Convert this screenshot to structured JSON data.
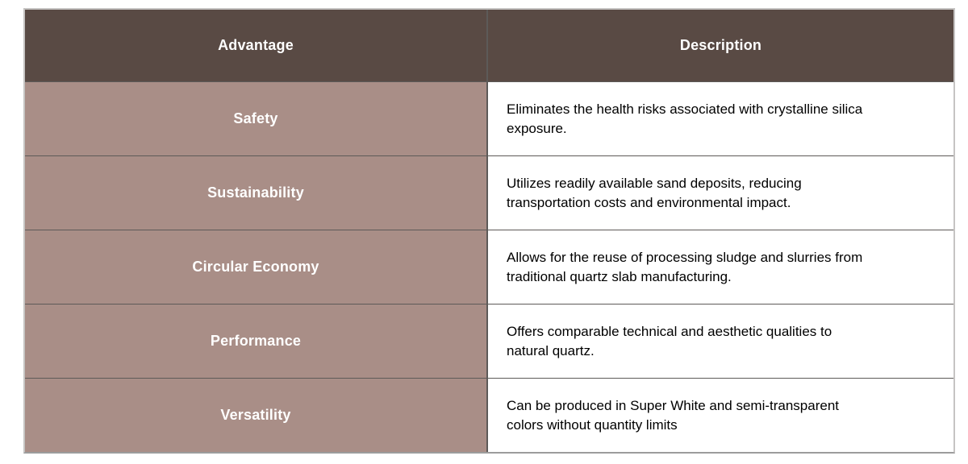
{
  "table": {
    "header": {
      "advantage_label": "Advantage",
      "description_label": "Description"
    },
    "rows": [
      {
        "advantage": "Safety",
        "description": "Eliminates the health risks associated with crystalline silica exposure."
      },
      {
        "advantage": "Sustainability",
        "description": "Utilizes readily available sand deposits, reducing transportation costs and environmental impact."
      },
      {
        "advantage": "Circular Economy",
        "description": "Allows for the reuse of processing sludge and slurries from traditional quartz slab manufacturing."
      },
      {
        "advantage": "Performance",
        "description": "Offers comparable technical and aesthetic qualities to natural quartz."
      },
      {
        "advantage": "Versatility",
        "description": "Can be produced in Super White and semi-transparent colors without quantity limits"
      }
    ],
    "colors": {
      "header-bg": "#594a44",
      "header-text": "#ffffff",
      "advantage-bg": "#a98e87",
      "advantage-text": "#ffffff",
      "description-bg": "#ffffff",
      "description-text": "#000000",
      "inner-border": "#5d5a58",
      "outer-border": "#c6c4c3",
      "bottom-border": "#9c9c9c"
    }
  }
}
